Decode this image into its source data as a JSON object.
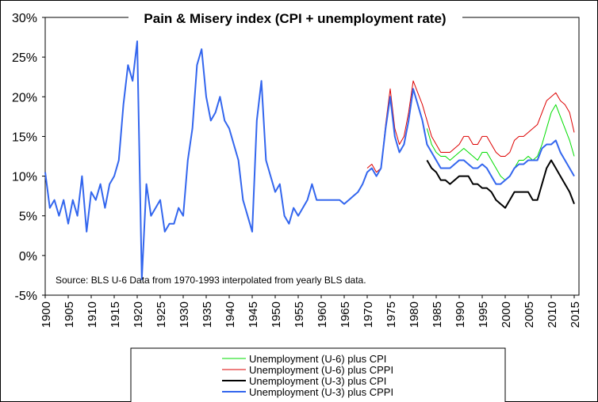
{
  "chart_data": {
    "type": "line",
    "title": "Pain & Misery index (CPI + unemployment rate)",
    "annotation": "Source: BLS  U-6 Data from 1970-1993 interpolated from yearly BLS data.",
    "x": [
      1900,
      1901,
      1902,
      1903,
      1904,
      1905,
      1906,
      1907,
      1908,
      1909,
      1910,
      1911,
      1912,
      1913,
      1914,
      1915,
      1916,
      1917,
      1918,
      1919,
      1920,
      1921,
      1922,
      1923,
      1924,
      1925,
      1926,
      1927,
      1928,
      1929,
      1930,
      1931,
      1932,
      1933,
      1934,
      1935,
      1936,
      1937,
      1938,
      1939,
      1940,
      1941,
      1942,
      1943,
      1944,
      1945,
      1946,
      1947,
      1948,
      1949,
      1950,
      1951,
      1952,
      1953,
      1954,
      1955,
      1956,
      1957,
      1958,
      1959,
      1960,
      1961,
      1962,
      1963,
      1964,
      1965,
      1966,
      1967,
      1968,
      1969,
      1970,
      1971,
      1972,
      1973,
      1974,
      1975,
      1976,
      1977,
      1978,
      1979,
      1980,
      1981,
      1982,
      1983,
      1984,
      1985,
      1986,
      1987,
      1988,
      1989,
      1990,
      1991,
      1992,
      1993,
      1994,
      1995,
      1996,
      1997,
      1998,
      1999,
      2000,
      2001,
      2002,
      2003,
      2004,
      2005,
      2006,
      2007,
      2008,
      2009,
      2010,
      2011,
      2012,
      2013,
      2014,
      2015
    ],
    "xlim": [
      1900,
      2015
    ],
    "xticks": [
      1900,
      1905,
      1910,
      1915,
      1920,
      1925,
      1930,
      1935,
      1940,
      1945,
      1950,
      1955,
      1960,
      1965,
      1970,
      1975,
      1980,
      1985,
      1990,
      1995,
      2000,
      2005,
      2010,
      2015
    ],
    "ylim": [
      -5,
      30
    ],
    "yticks": [
      {
        "value": -5,
        "label": "-5%"
      },
      {
        "value": 0,
        "label": "0%"
      },
      {
        "value": 5,
        "label": "5%"
      },
      {
        "value": 10,
        "label": "10%"
      },
      {
        "value": 15,
        "label": "15%"
      },
      {
        "value": 20,
        "label": "20%"
      },
      {
        "value": 25,
        "label": "25%"
      },
      {
        "value": 30,
        "label": "30%"
      }
    ],
    "series": [
      {
        "name": "Unemployment (U-6) plus CPI",
        "color": "#00dd00",
        "width": 1,
        "values": [
          null,
          null,
          null,
          null,
          null,
          null,
          null,
          null,
          null,
          null,
          null,
          null,
          null,
          null,
          null,
          null,
          null,
          null,
          null,
          null,
          null,
          null,
          null,
          null,
          null,
          null,
          null,
          null,
          null,
          null,
          null,
          null,
          null,
          null,
          null,
          null,
          null,
          null,
          null,
          null,
          null,
          null,
          null,
          null,
          null,
          null,
          null,
          null,
          null,
          null,
          null,
          null,
          null,
          null,
          null,
          null,
          null,
          null,
          null,
          null,
          null,
          null,
          null,
          null,
          null,
          null,
          null,
          null,
          null,
          null,
          null,
          null,
          null,
          null,
          null,
          null,
          null,
          null,
          null,
          null,
          null,
          null,
          null,
          16,
          14,
          13,
          12.5,
          12.5,
          12,
          12.5,
          13,
          13.5,
          13,
          12.5,
          12,
          13,
          13,
          12,
          11,
          10,
          9.5,
          10,
          11,
          12,
          12,
          12.5,
          12,
          12.5,
          14,
          16,
          18,
          19,
          17.5,
          16,
          14.5,
          12.5
        ]
      },
      {
        "name": "Unemployment (U-6) plus CPPI",
        "color": "#dd0000",
        "width": 1,
        "values": [
          null,
          null,
          null,
          null,
          null,
          null,
          null,
          null,
          null,
          null,
          null,
          null,
          null,
          null,
          null,
          null,
          null,
          null,
          null,
          null,
          null,
          null,
          null,
          null,
          null,
          null,
          null,
          null,
          null,
          null,
          null,
          null,
          null,
          null,
          null,
          null,
          null,
          null,
          null,
          null,
          null,
          null,
          null,
          null,
          null,
          null,
          null,
          null,
          null,
          null,
          null,
          null,
          null,
          null,
          null,
          null,
          null,
          null,
          null,
          null,
          null,
          null,
          null,
          null,
          null,
          null,
          null,
          null,
          null,
          null,
          11,
          11.5,
          10.5,
          11,
          16.5,
          21,
          16,
          14,
          15,
          18,
          22,
          20.5,
          19,
          17,
          15,
          14,
          13,
          13,
          13,
          13.5,
          14,
          15,
          15,
          14,
          14,
          15,
          15,
          14,
          13,
          12.5,
          12.5,
          13,
          14.5,
          15,
          15,
          15.5,
          16,
          16.5,
          18,
          19.5,
          20,
          20.5,
          19.5,
          19,
          18,
          15.5
        ]
      },
      {
        "name": "Unemployment (U-3) plus CPI",
        "color": "#000000",
        "width": 2,
        "values": [
          null,
          null,
          null,
          null,
          null,
          null,
          null,
          null,
          null,
          null,
          null,
          null,
          null,
          null,
          null,
          null,
          null,
          null,
          null,
          null,
          null,
          null,
          null,
          null,
          null,
          null,
          null,
          null,
          null,
          null,
          null,
          null,
          null,
          null,
          null,
          null,
          null,
          null,
          null,
          null,
          null,
          null,
          null,
          null,
          null,
          null,
          null,
          null,
          null,
          null,
          null,
          null,
          null,
          null,
          null,
          null,
          null,
          null,
          null,
          null,
          null,
          null,
          null,
          null,
          null,
          null,
          null,
          null,
          null,
          null,
          null,
          null,
          null,
          null,
          null,
          null,
          null,
          null,
          null,
          null,
          null,
          null,
          null,
          12,
          11,
          10.5,
          9.5,
          9.5,
          9,
          9.5,
          10,
          10,
          10,
          9,
          9,
          8.5,
          8.5,
          8,
          7,
          6.5,
          6,
          7,
          8,
          8,
          8,
          8,
          7,
          7,
          9,
          11,
          12,
          11,
          10,
          9,
          8,
          6.5
        ]
      },
      {
        "name": "Unemployment (U-3) plus CPPI",
        "color": "#3366ee",
        "width": 2,
        "values": [
          10.5,
          6,
          7,
          5,
          7,
          4,
          7,
          5,
          10,
          3,
          8,
          7,
          9,
          6,
          9,
          10,
          12,
          19,
          24,
          22,
          27,
          -3,
          9,
          5,
          6,
          7,
          3,
          4,
          4,
          6,
          5,
          12,
          16,
          24,
          26,
          20,
          17,
          18,
          20,
          17,
          16,
          14,
          12,
          7,
          5,
          3,
          17,
          22,
          12,
          10,
          8,
          9,
          5,
          4,
          6,
          5,
          6,
          7,
          9,
          7,
          7,
          7,
          7,
          7,
          7,
          6.5,
          7,
          7.5,
          8,
          9,
          10.5,
          11,
          10,
          11,
          16,
          20,
          15,
          13,
          14,
          17,
          21,
          19,
          17,
          14,
          13,
          12,
          11,
          11,
          11,
          11.5,
          12,
          12,
          11.5,
          11,
          11,
          11.5,
          11,
          10,
          9,
          9,
          9.5,
          10,
          11,
          11.5,
          11.5,
          12,
          12,
          12,
          13.5,
          14,
          14,
          14.5,
          13,
          12,
          11,
          10
        ]
      }
    ]
  }
}
